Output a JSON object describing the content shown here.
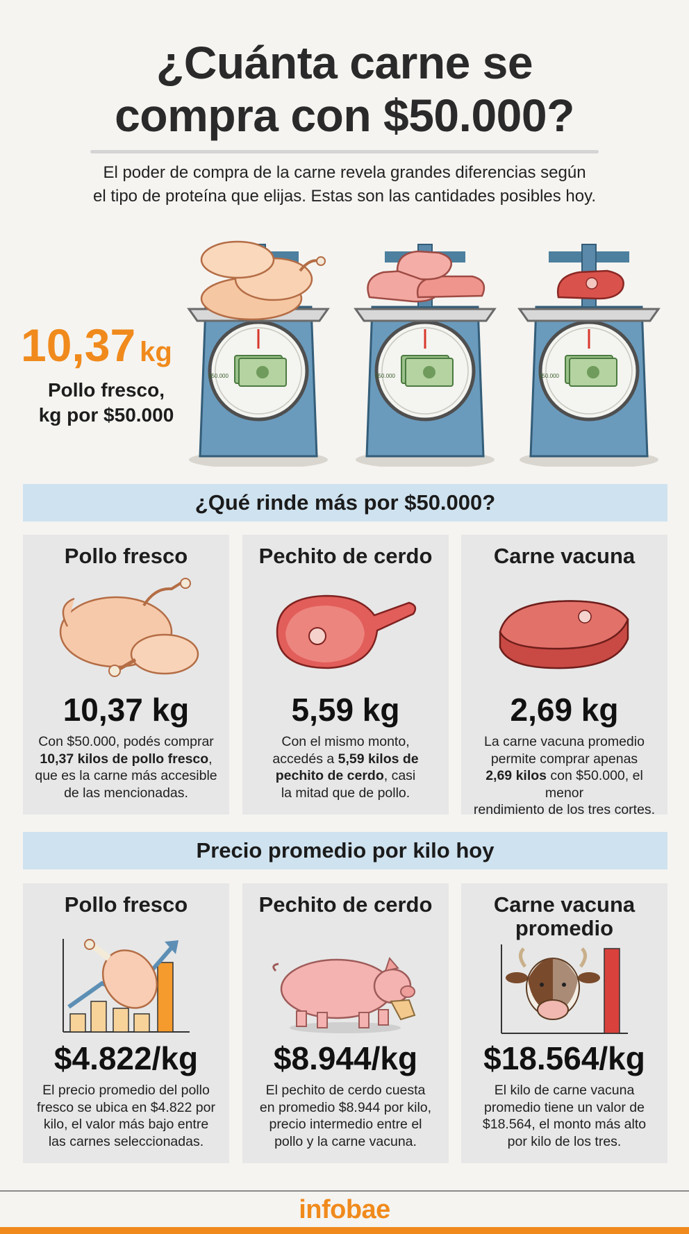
{
  "title": {
    "line1": "¿Cuánta carne se",
    "line2": "compra con $50.000?"
  },
  "subtitle": {
    "line1": "El poder de compra de la carne revela grandes diferencias según",
    "line2": "el tipo de proteína que elijas. Estas son las cantidades posibles hoy."
  },
  "hero": {
    "value": "10,37",
    "unit": "kg",
    "label_line1": "Pollo fresco,",
    "label_line2": "kg por $50.000",
    "bill_text": "$50.000",
    "accent_color": "#f08a1c"
  },
  "section1": {
    "heading": "¿Qué rinde más por $50.000?",
    "cards": [
      {
        "title": "Pollo fresco",
        "icon": "roast-chicken-icon",
        "value": "10,37 kg",
        "desc": [
          {
            "text": "Con $50.000, podés comprar"
          },
          {
            "bold": "10,37 kilos de pollo fresco",
            "rest": ","
          },
          {
            "text": "que es la carne más accesible"
          },
          {
            "text": "de las mencionadas."
          }
        ]
      },
      {
        "title": "Pechito de cerdo",
        "icon": "pork-chop-icon",
        "value": "5,59 kg",
        "desc": [
          {
            "text": "Con el mismo monto,"
          },
          {
            "pre": "accedés a ",
            "bold": "5,59 kilos de"
          },
          {
            "bold": "pechito de cerdo",
            "rest": ", casi"
          },
          {
            "text": "la mitad que de pollo."
          }
        ]
      },
      {
        "title": "Carne vacuna",
        "icon": "beef-steak-icon",
        "value": "2,69 kg",
        "desc": [
          {
            "text": "La carne vacuna promedio"
          },
          {
            "text": "permite comprar apenas"
          },
          {
            "bold": "2,69 kilos",
            "rest": " con $50.000, el menor"
          },
          {
            "text": "rendimiento de los tres cortes."
          }
        ]
      }
    ]
  },
  "section2": {
    "heading": "Precio promedio por kilo hoy",
    "cards": [
      {
        "title_line1": "Pollo fresco",
        "title_line2": "",
        "icon": "chicken-leg-chart-icon",
        "value": "$4.822/kg",
        "desc": [
          "El precio promedio del pollo",
          "fresco se ubica en $4.822 por",
          "kilo, el valor más bajo entre",
          "las carnes seleccionadas."
        ]
      },
      {
        "title_line1": "Pechito de cerdo",
        "title_line2": "",
        "icon": "pig-icon",
        "value": "$8.944/kg",
        "desc": [
          "El pechito de cerdo cuesta",
          "en promedio $8.944 por kilo,",
          "precio intermedio entre el",
          "pollo y la carne vacuna."
        ]
      },
      {
        "title_line1": "Carne vacuna",
        "title_line2": "promedio",
        "icon": "cow-chart-icon",
        "value": "$18.564/kg",
        "desc": [
          "El kilo de carne vacuna",
          "promedio tiene un valor de",
          "$18.564, el monto más alto",
          "por kilo de los tres."
        ]
      }
    ]
  },
  "footer": {
    "brand": "infobae",
    "brand_color": "#f08a1c"
  }
}
